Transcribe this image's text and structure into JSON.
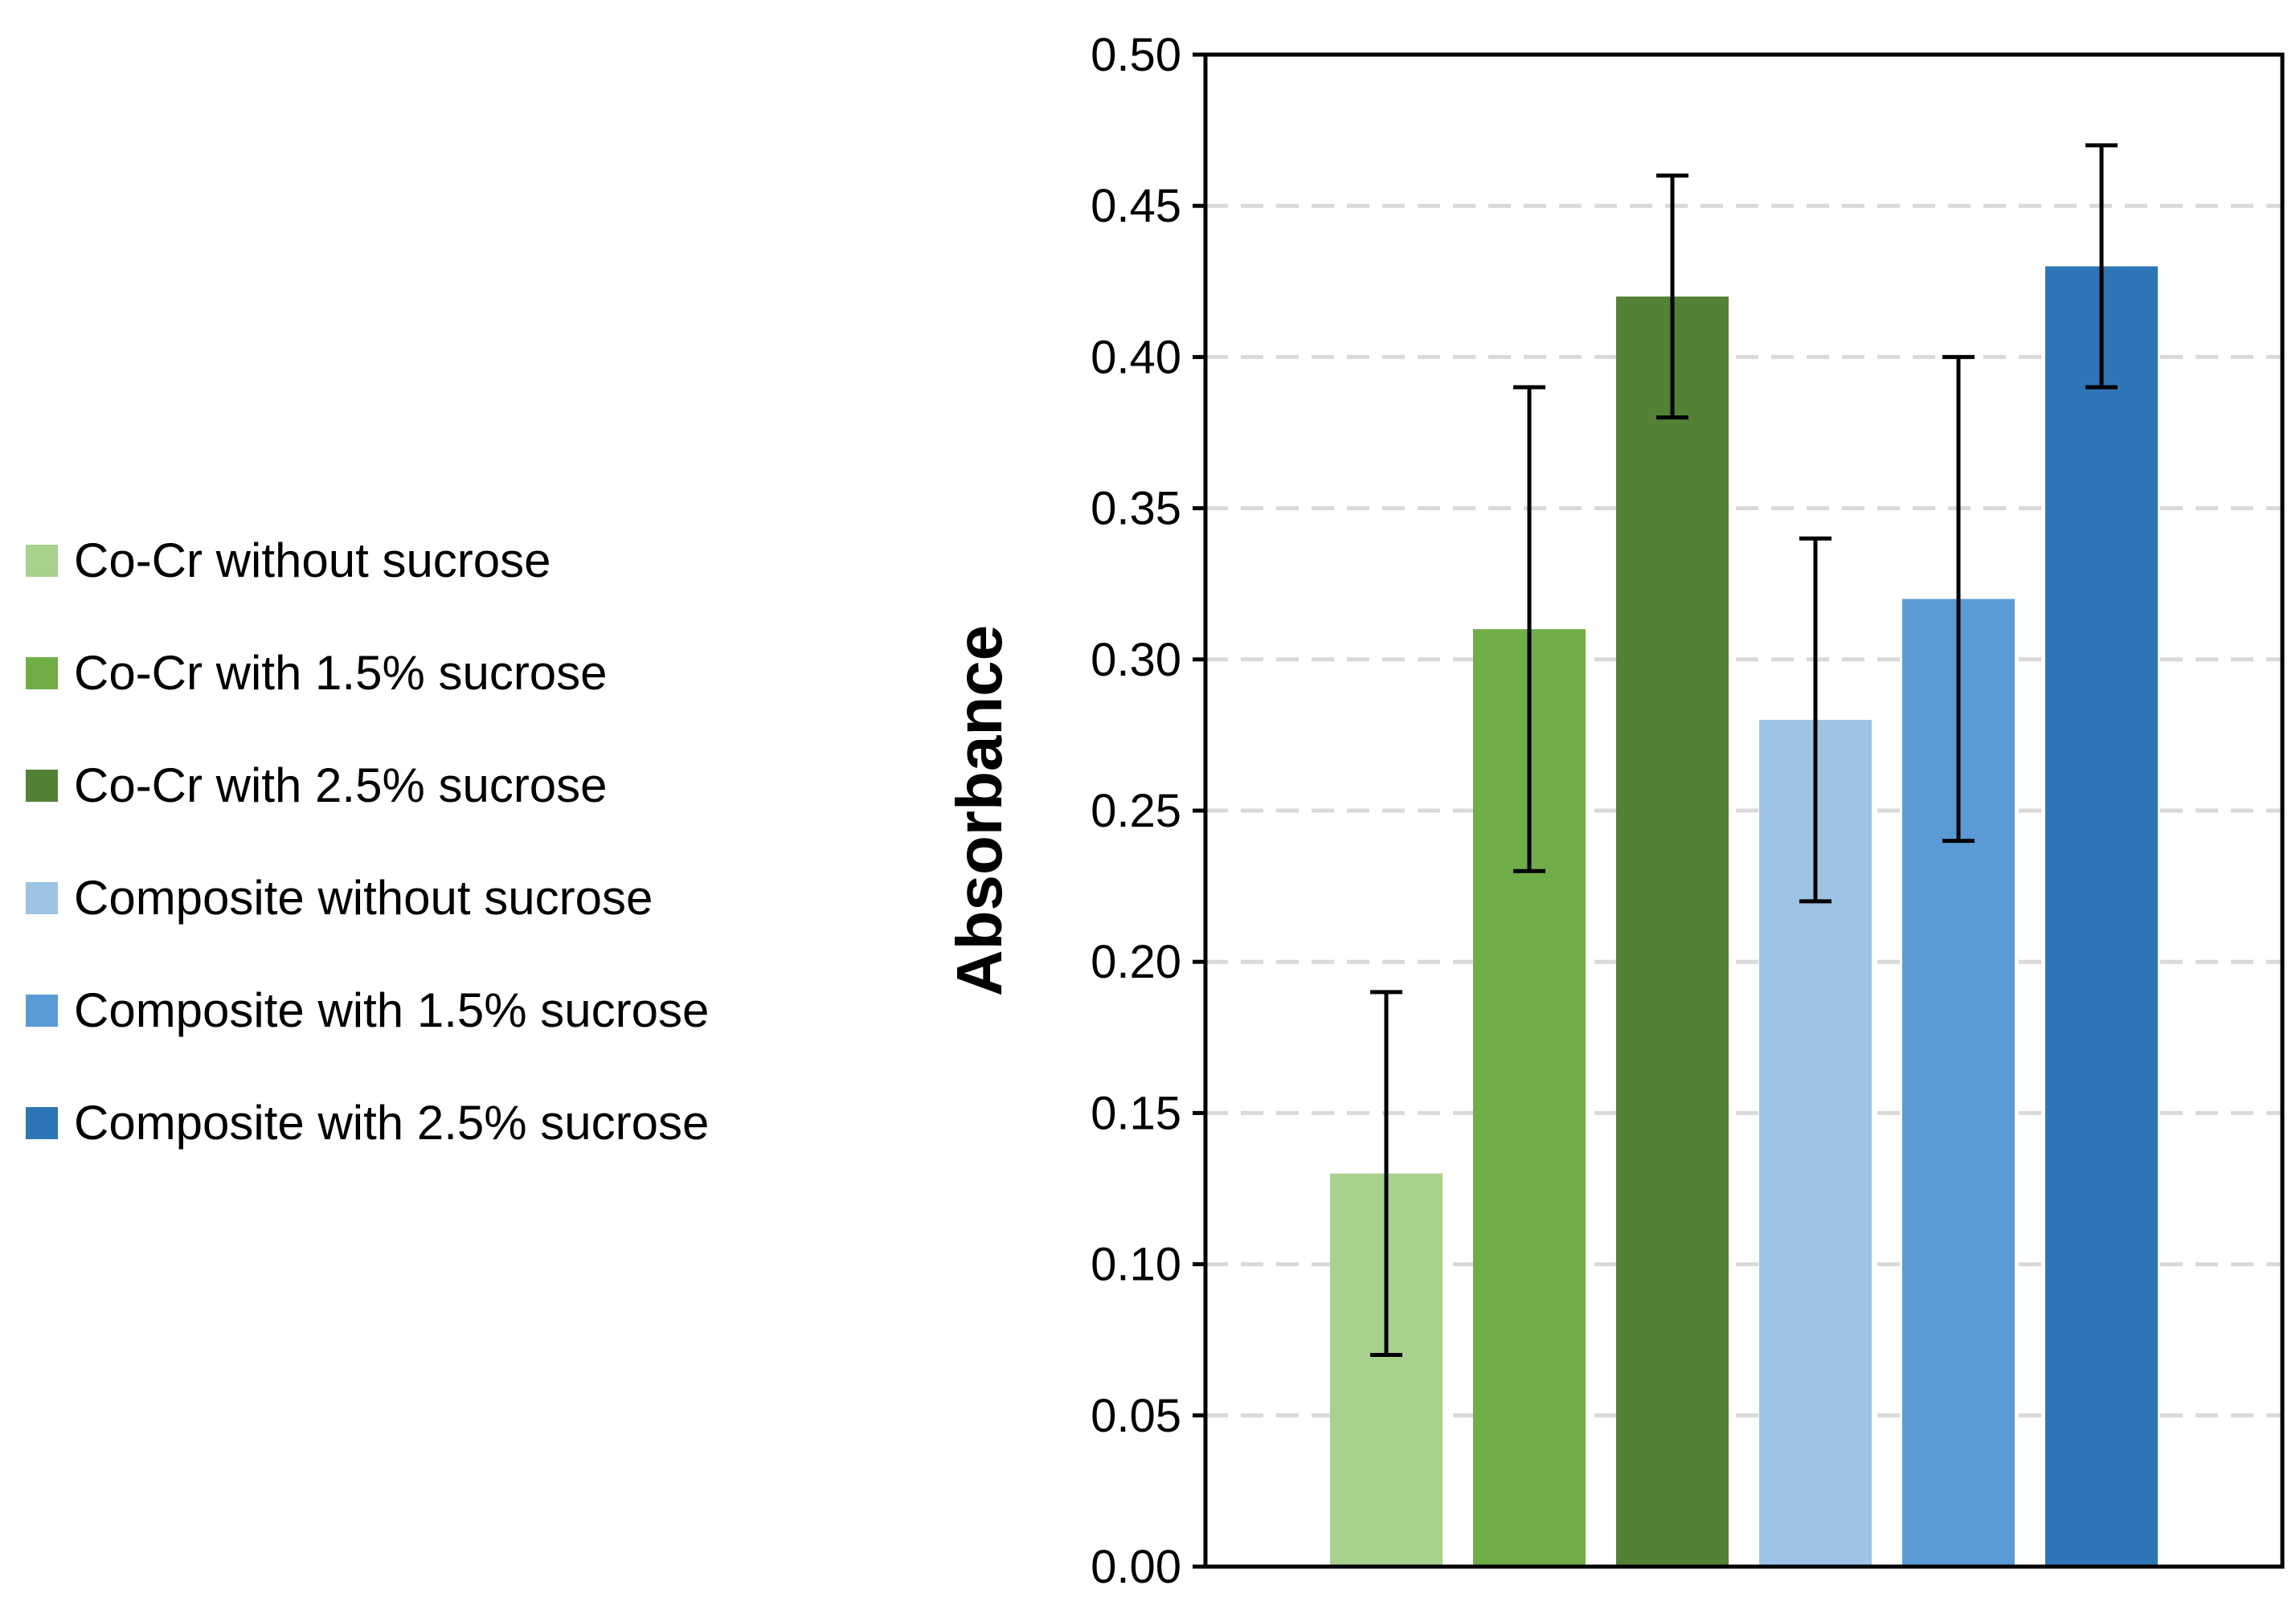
{
  "chart_data": {
    "type": "bar",
    "title": "",
    "xlabel": "",
    "ylabel": "Absorbance",
    "ylim": [
      0,
      0.5
    ],
    "yticks": [
      "0.00",
      "0.05",
      "0.10",
      "0.15",
      "0.20",
      "0.25",
      "0.30",
      "0.35",
      "0.40",
      "0.45",
      "0.50"
    ],
    "grid": "horizontal dashed",
    "legend_position": "left",
    "series": [
      {
        "name": "Co-Cr without sucrose",
        "value": 0.13,
        "error": 0.06,
        "color": "#a9d18e"
      },
      {
        "name": "Co-Cr with 1.5% sucrose",
        "value": 0.31,
        "error": 0.08,
        "color": "#70ad47"
      },
      {
        "name": "Co-Cr with 2.5% sucrose",
        "value": 0.42,
        "error": 0.04,
        "color": "#538135"
      },
      {
        "name": "Composite without sucrose",
        "value": 0.28,
        "error": 0.06,
        "color": "#9dc3e6"
      },
      {
        "name": "Composite with 1.5% sucrose",
        "value": 0.32,
        "error": 0.08,
        "color": "#5b9bd5"
      },
      {
        "name": "Composite with 2.5% sucrose",
        "value": 0.43,
        "error": 0.04,
        "color": "#2e75b6"
      }
    ]
  }
}
